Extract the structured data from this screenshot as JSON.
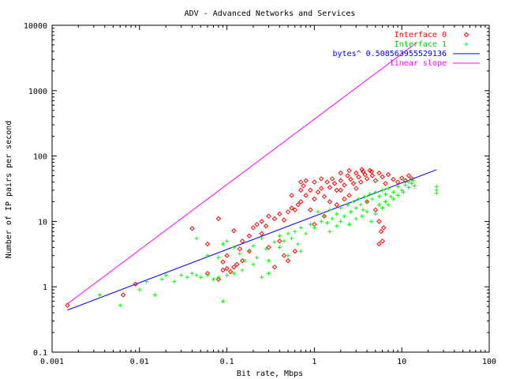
{
  "chart_data": {
    "type": "scatter",
    "title": "ADV - Advanced Networks and Services",
    "xlabel": "Bit rate, Mbps",
    "ylabel": "Number of IP pairs per second",
    "xscale": "log",
    "yscale": "log",
    "xlim": [
      0.001,
      100
    ],
    "ylim": [
      0.1,
      10000
    ],
    "x_ticks": [
      "0.001",
      "0.01",
      "0.1",
      "1",
      "10",
      "100"
    ],
    "y_ticks": [
      "0.1",
      "1",
      "10",
      "100",
      "1000",
      "10000"
    ],
    "grid": false,
    "legend_position": "top-right",
    "series": [
      {
        "name": "Interface 0",
        "kind": "points",
        "marker": "diamond",
        "color": "#ff0000",
        "points": [
          [
            0.0015,
            0.52
          ],
          [
            0.0065,
            0.75
          ],
          [
            0.009,
            1.1
          ],
          [
            0.06,
            1.6
          ],
          [
            0.08,
            1.3
          ],
          [
            0.09,
            1.8
          ],
          [
            0.1,
            1.9
          ],
          [
            0.11,
            1.7
          ],
          [
            0.12,
            2.0
          ],
          [
            0.13,
            2.2
          ],
          [
            0.15,
            2.5
          ],
          [
            0.1,
            3.0
          ],
          [
            0.09,
            2.4
          ],
          [
            0.14,
            3.8
          ],
          [
            0.06,
            4.5
          ],
          [
            0.04,
            7.8
          ],
          [
            0.12,
            7.2
          ],
          [
            0.08,
            11.0
          ],
          [
            0.15,
            5.0
          ],
          [
            0.18,
            6.0
          ],
          [
            0.2,
            8.0
          ],
          [
            0.22,
            9.0
          ],
          [
            0.25,
            10.0
          ],
          [
            0.28,
            8.5
          ],
          [
            0.3,
            12.0
          ],
          [
            0.35,
            11.0
          ],
          [
            0.4,
            13.0
          ],
          [
            0.45,
            10.5
          ],
          [
            0.5,
            14.0
          ],
          [
            0.55,
            16.0
          ],
          [
            0.6,
            15.0
          ],
          [
            0.65,
            18.0
          ],
          [
            0.7,
            20.0
          ],
          [
            0.7,
            40.0
          ],
          [
            0.75,
            35.0
          ],
          [
            0.8,
            25.0
          ],
          [
            0.9,
            30.0
          ],
          [
            1.0,
            22.0
          ],
          [
            1.1,
            28.0
          ],
          [
            1.2,
            32.0
          ],
          [
            1.3,
            24.0
          ],
          [
            1.4,
            40.0
          ],
          [
            1.5,
            33.0
          ],
          [
            1.6,
            45.0
          ],
          [
            1.7,
            38.0
          ],
          [
            1.8,
            30.0
          ],
          [
            2.0,
            42.0
          ],
          [
            2.2,
            36.0
          ],
          [
            2.4,
            50.0
          ],
          [
            2.6,
            44.0
          ],
          [
            2.8,
            38.0
          ],
          [
            3.0,
            55.0
          ],
          [
            3.2,
            48.0
          ],
          [
            3.4,
            40.0
          ],
          [
            3.6,
            58.0
          ],
          [
            3.8,
            52.0
          ],
          [
            4.0,
            45.0
          ],
          [
            4.3,
            60.0
          ],
          [
            4.6,
            50.0
          ],
          [
            5.0,
            42.0
          ],
          [
            5.5,
            55.0
          ],
          [
            6.0,
            48.0
          ],
          [
            6.5,
            38.0
          ],
          [
            7.0,
            52.0
          ],
          [
            8.0,
            44.0
          ],
          [
            9.0,
            40.0
          ],
          [
            10.0,
            46.0
          ],
          [
            11.0,
            42.0
          ],
          [
            12.0,
            50.0
          ],
          [
            13.0,
            45.0
          ],
          [
            2.0,
            55.0
          ],
          [
            2.5,
            60.0
          ],
          [
            3.5,
            62.0
          ],
          [
            4.5,
            58.0
          ],
          [
            1.0,
            40.0
          ],
          [
            0.8,
            42.0
          ],
          [
            1.2,
            45.0
          ],
          [
            2.0,
            30.0
          ],
          [
            2.5,
            25.0
          ],
          [
            3.0,
            32.0
          ],
          [
            1.5,
            20.0
          ],
          [
            1.8,
            18.0
          ],
          [
            2.2,
            22.0
          ],
          [
            4.0,
            20.0
          ],
          [
            5.0,
            15.0
          ],
          [
            5.5,
            10.0
          ],
          [
            5.8,
            7.0
          ],
          [
            6.0,
            5.0
          ],
          [
            5.5,
            4.5
          ],
          [
            6.2,
            8.0
          ],
          [
            0.4,
            5.0
          ],
          [
            0.3,
            4.0
          ],
          [
            0.6,
            3.5
          ],
          [
            0.5,
            2.5
          ],
          [
            0.25,
            6.5
          ],
          [
            1.0,
            9.0
          ],
          [
            1.3,
            12.0
          ],
          [
            0.9,
            15.0
          ],
          [
            0.55,
            25.0
          ],
          [
            0.7,
            30.0
          ],
          [
            0.35,
            2.0
          ],
          [
            0.45,
            3.0
          ],
          [
            0.18,
            3.5
          ]
        ]
      },
      {
        "name": "Interface 1",
        "kind": "points",
        "marker": "plus",
        "color": "#00ff00",
        "points": [
          [
            0.0035,
            0.75
          ],
          [
            0.006,
            0.52
          ],
          [
            0.01,
            0.9
          ],
          [
            0.012,
            1.2
          ],
          [
            0.015,
            0.75
          ],
          [
            0.018,
            1.3
          ],
          [
            0.02,
            1.5
          ],
          [
            0.025,
            1.2
          ],
          [
            0.03,
            1.5
          ],
          [
            0.035,
            1.4
          ],
          [
            0.04,
            1.6
          ],
          [
            0.045,
            1.5
          ],
          [
            0.05,
            1.4
          ],
          [
            0.06,
            1.5
          ],
          [
            0.07,
            1.3
          ],
          [
            0.08,
            1.4
          ],
          [
            0.09,
            0.6
          ],
          [
            0.1,
            1.5
          ],
          [
            0.12,
            1.6
          ],
          [
            0.045,
            5.5
          ],
          [
            0.06,
            3.0
          ],
          [
            0.08,
            2.8
          ],
          [
            0.09,
            4.5
          ],
          [
            0.1,
            5.0
          ],
          [
            0.12,
            4.0
          ],
          [
            0.14,
            3.2
          ],
          [
            0.16,
            2.5
          ],
          [
            0.18,
            3.5
          ],
          [
            0.2,
            4.2
          ],
          [
            0.22,
            2.8
          ],
          [
            0.25,
            5.5
          ],
          [
            0.28,
            3.8
          ],
          [
            0.3,
            2.5
          ],
          [
            0.35,
            4.8
          ],
          [
            0.4,
            6.0
          ],
          [
            0.45,
            5.0
          ],
          [
            0.5,
            6.5
          ],
          [
            0.55,
            5.5
          ],
          [
            0.6,
            7.0
          ],
          [
            0.65,
            4.5
          ],
          [
            0.7,
            8.0
          ],
          [
            0.8,
            6.5
          ],
          [
            0.9,
            9.0
          ],
          [
            1.0,
            8.0
          ],
          [
            1.1,
            14.0
          ],
          [
            1.2,
            10.0
          ],
          [
            1.3,
            12.0
          ],
          [
            1.4,
            9.5
          ],
          [
            1.5,
            15.0
          ],
          [
            1.6,
            11.0
          ],
          [
            1.8,
            13.0
          ],
          [
            2.0,
            16.0
          ],
          [
            2.2,
            12.0
          ],
          [
            2.4,
            18.0
          ],
          [
            2.6,
            14.0
          ],
          [
            2.8,
            20.0
          ],
          [
            3.0,
            16.0
          ],
          [
            3.2,
            22.0
          ],
          [
            3.4,
            18.0
          ],
          [
            3.6,
            15.0
          ],
          [
            3.8,
            24.0
          ],
          [
            4.0,
            20.0
          ],
          [
            4.3,
            26.0
          ],
          [
            4.6,
            22.0
          ],
          [
            5.0,
            28.0
          ],
          [
            5.5,
            24.0
          ],
          [
            6.0,
            30.0
          ],
          [
            6.5,
            26.0
          ],
          [
            7.0,
            32.0
          ],
          [
            8.0,
            28.0
          ],
          [
            9.0,
            34.0
          ],
          [
            10.0,
            30.0
          ],
          [
            11.0,
            36.0
          ],
          [
            12.0,
            33.0
          ],
          [
            13.0,
            38.0
          ],
          [
            14.0,
            35.0
          ],
          [
            25.0,
            30.0
          ],
          [
            25.0,
            34.0
          ],
          [
            25.0,
            27.0
          ],
          [
            2.0,
            10.0
          ],
          [
            2.5,
            9.0
          ],
          [
            3.0,
            11.0
          ],
          [
            3.5,
            12.0
          ],
          [
            4.0,
            14.0
          ],
          [
            4.5,
            10.0
          ],
          [
            5.0,
            13.0
          ],
          [
            6.0,
            16.0
          ],
          [
            7.0,
            18.0
          ],
          [
            8.0,
            22.0
          ],
          [
            1.5,
            7.0
          ],
          [
            1.8,
            8.5
          ],
          [
            0.7,
            3.5
          ],
          [
            0.5,
            3.0
          ],
          [
            0.3,
            1.6
          ],
          [
            0.25,
            1.4
          ],
          [
            0.2,
            2.2
          ],
          [
            0.15,
            1.8
          ],
          [
            0.4,
            4.0
          ],
          [
            9.0,
            25.0
          ],
          [
            10.5,
            28.0
          ],
          [
            12.0,
            40.0
          ],
          [
            13.5,
            42.0
          ],
          [
            6.5,
            20.0
          ],
          [
            7.5,
            24.0
          ],
          [
            5.5,
            18.0
          ]
        ]
      },
      {
        "name": "bytes^ 0.508563955529136",
        "kind": "line",
        "color": "#0000ff",
        "exponent": 0.508563955529136,
        "x": [
          0.0015,
          25.0
        ]
      },
      {
        "name": "linear slope",
        "kind": "line",
        "color": "#ff00ff",
        "slope": 1,
        "x": [
          0.0015,
          15.0
        ]
      }
    ]
  }
}
